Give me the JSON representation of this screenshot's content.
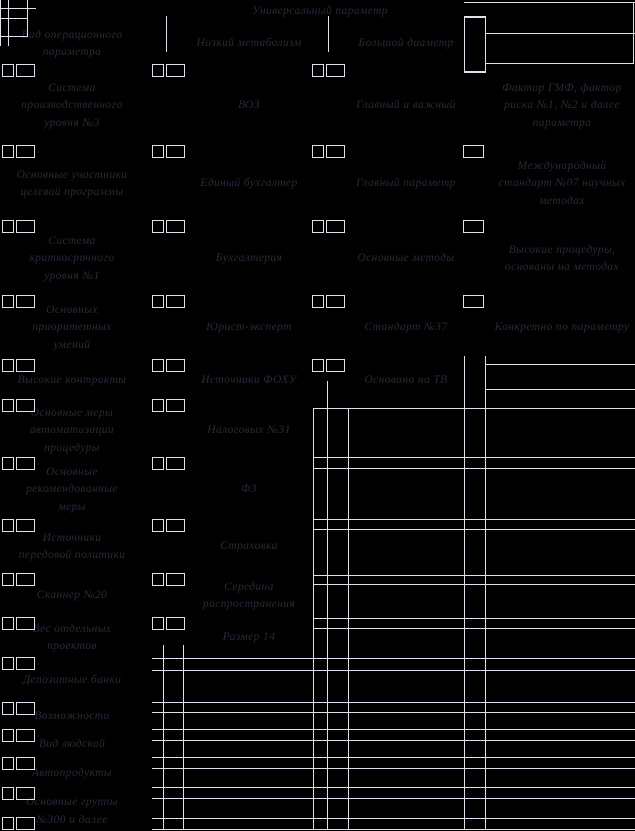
{
  "title": "Универсальный параметр",
  "colors": {
    "background": "#000000",
    "grid": "#e0e0ec",
    "text": "#2b2838"
  },
  "table": {
    "rows": [
      {
        "c1": "Вид операционного параметра",
        "c2": "Низкий метаболизм",
        "c3": "Большой диаметр",
        "c4": ""
      },
      {
        "c1": "Система производственного уровня №3",
        "c2": "ВОЗ",
        "c3": "Главный и важный",
        "c4": "Фактор ГМФ, фактор риска №1, №2 и далее параметра"
      },
      {
        "c1": "Основные участники целевой программы",
        "c2": "Единый бухгалтер",
        "c3": "Главный параметр",
        "c4": "Международный стандарт №07 научных методах"
      },
      {
        "c1": "Система краткосрочного уровня №1",
        "c2": "Бухгалтерия",
        "c3": "Основные методы",
        "c4": "Высокие процедуры, основаны на методах"
      },
      {
        "c1": "Основных приоритетных умений",
        "c2": "Юрист-эксперт",
        "c3": "Стандарт №37",
        "c4": "Конкретно по параметру"
      },
      {
        "c1": "Высокие контракты",
        "c2": "Источники ФОХУ",
        "c3": "Основано на ТВ",
        "c4": ""
      },
      {
        "c1": "Основные меры автоматизации процедуры",
        "c2": "Налоговых №31",
        "c3": "",
        "c4": ""
      },
      {
        "c1": "Основные рекомендованные меры",
        "c2": "ФЗ",
        "c3": "",
        "c4": ""
      },
      {
        "c1": "Источники передовой политики",
        "c2": "Страховка",
        "c3": "",
        "c4": ""
      },
      {
        "c1": "Сканнер №20",
        "c2": "Середина распространения",
        "c3": "",
        "c4": ""
      },
      {
        "c1": "Вес отдельных проектов",
        "c2": "Размер 14",
        "c3": "",
        "c4": ""
      },
      {
        "c1": "Депозитные банки",
        "c2": "",
        "c3": "",
        "c4": ""
      },
      {
        "c1": "Возможности",
        "c2": "",
        "c3": "",
        "c4": ""
      },
      {
        "c1": "Вид людской",
        "c2": "",
        "c3": "",
        "c4": ""
      },
      {
        "c1": "Автопродукты",
        "c2": "",
        "c3": "",
        "c4": ""
      },
      {
        "c1": "Основные группы №300 и далее",
        "c2": "",
        "c3": "",
        "c4": ""
      }
    ]
  }
}
